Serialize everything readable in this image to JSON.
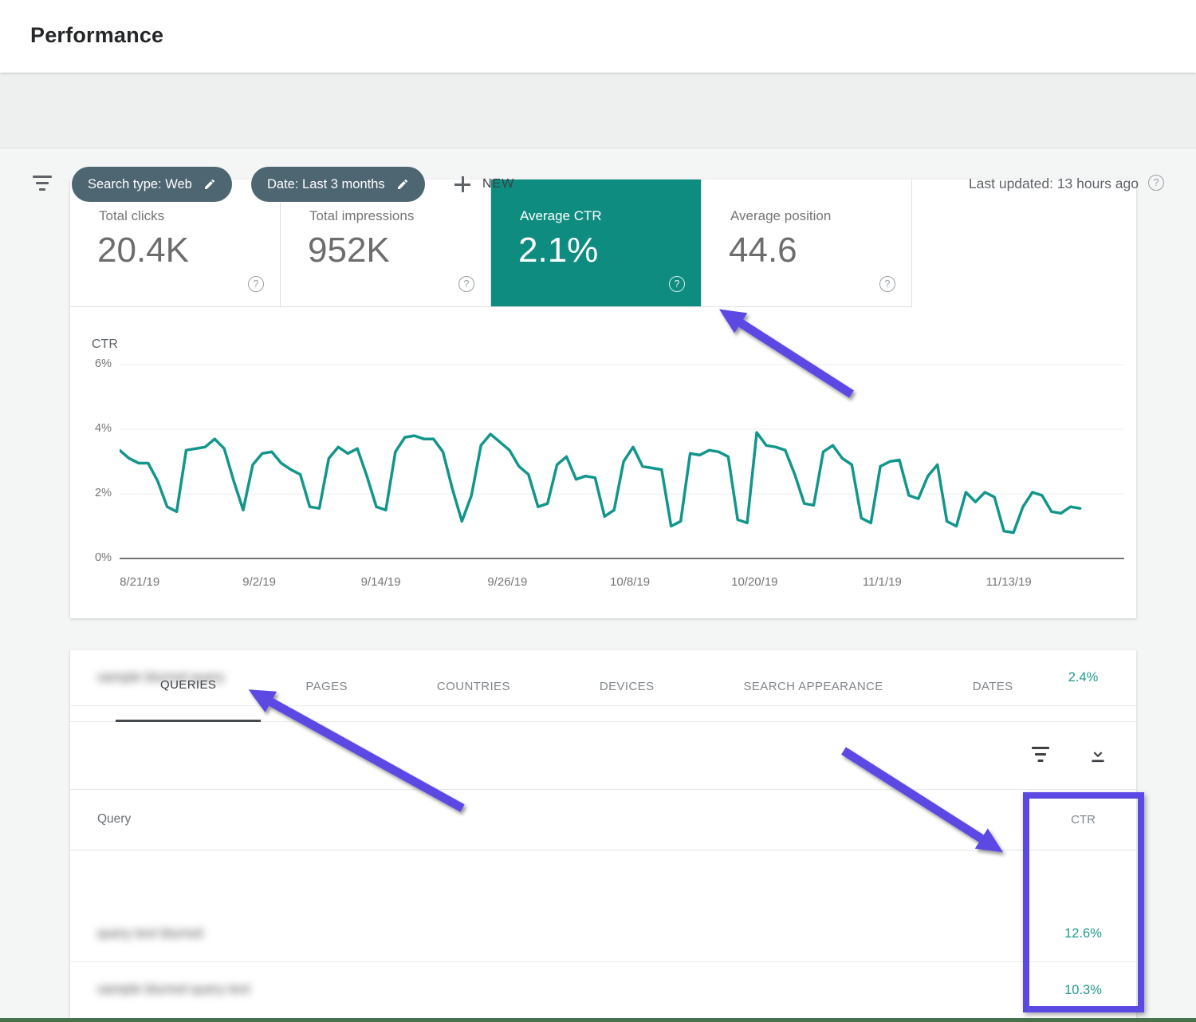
{
  "page": {
    "title": "Performance"
  },
  "toolbar": {
    "search_type_chip": "Search type: Web",
    "date_chip": "Date: Last 3 months",
    "new_button": "NEW",
    "last_updated": "Last updated: 13 hours ago"
  },
  "metric_cards": [
    {
      "label": "Total clicks",
      "value": "20.4K",
      "selected": false
    },
    {
      "label": "Total impressions",
      "value": "952K",
      "selected": false
    },
    {
      "label": "Average CTR",
      "value": "2.1%",
      "selected": true
    },
    {
      "label": "Average position",
      "value": "44.6",
      "selected": false
    }
  ],
  "chart_data": {
    "type": "line",
    "title": "CTR",
    "ylabel": "CTR",
    "xlabel": "",
    "ylim": [
      0,
      6
    ],
    "grid": true,
    "legend_position": "none",
    "x_range": [
      "8/21/19",
      "11/20/19"
    ],
    "y_ticks": [
      {
        "label": "6%",
        "value": 6
      },
      {
        "label": "4%",
        "value": 4
      },
      {
        "label": "2%",
        "value": 2
      },
      {
        "label": "0%",
        "value": 0
      }
    ],
    "x_ticks": [
      {
        "label": "8/21/19",
        "pos_pct": 2.0
      },
      {
        "label": "9/2/19",
        "pos_pct": 13.9
      },
      {
        "label": "9/14/19",
        "pos_pct": 26.0
      },
      {
        "label": "9/26/19",
        "pos_pct": 38.6
      },
      {
        "label": "10/8/19",
        "pos_pct": 50.8
      },
      {
        "label": "10/20/19",
        "pos_pct": 63.2
      },
      {
        "label": "11/1/19",
        "pos_pct": 75.9
      },
      {
        "label": "11/13/19",
        "pos_pct": 88.5
      }
    ],
    "line_end_pct": 95.6,
    "series": [
      {
        "name": "CTR",
        "unit": "%",
        "color": "#12968b",
        "values": [
          3.35,
          3.1,
          2.95,
          2.95,
          2.4,
          1.6,
          1.45,
          3.35,
          3.4,
          3.45,
          3.7,
          3.4,
          2.4,
          1.5,
          2.9,
          3.25,
          3.3,
          2.95,
          2.75,
          2.6,
          1.6,
          1.55,
          3.1,
          3.45,
          3.25,
          3.4,
          2.55,
          1.6,
          1.5,
          3.3,
          3.75,
          3.8,
          3.7,
          3.7,
          3.3,
          2.15,
          1.15,
          1.95,
          3.5,
          3.85,
          3.6,
          3.35,
          2.85,
          2.6,
          1.6,
          1.7,
          2.9,
          3.15,
          2.45,
          2.55,
          2.5,
          1.3,
          1.5,
          3.0,
          3.45,
          2.85,
          2.8,
          2.75,
          1.0,
          1.15,
          3.25,
          3.2,
          3.35,
          3.3,
          3.15,
          1.2,
          1.1,
          3.9,
          3.5,
          3.45,
          3.35,
          2.6,
          1.7,
          1.65,
          3.3,
          3.5,
          3.1,
          2.9,
          1.25,
          1.1,
          2.85,
          3.0,
          3.05,
          1.95,
          1.85,
          2.55,
          2.9,
          1.15,
          1.0,
          2.05,
          1.75,
          2.05,
          1.9,
          0.85,
          0.8,
          1.6,
          2.05,
          1.95,
          1.45,
          1.4,
          1.6,
          1.55
        ]
      }
    ]
  },
  "table": {
    "tabs": [
      {
        "label": "QUERIES",
        "active": true
      },
      {
        "label": "PAGES",
        "active": false
      },
      {
        "label": "COUNTRIES",
        "active": false
      },
      {
        "label": "DEVICES",
        "active": false
      },
      {
        "label": "SEARCH APPEARANCE",
        "active": false
      },
      {
        "label": "DATES",
        "active": false
      }
    ],
    "query_column_header": "Query",
    "ctr_column_header": "CTR",
    "rows": [
      {
        "query_blurred": "sample blurred query",
        "ctr": "2.4%"
      },
      {
        "query_blurred": "query text blurred",
        "ctr": "12.6%"
      },
      {
        "query_blurred": "sample blurred query text",
        "ctr": "10.3%"
      }
    ]
  },
  "colors": {
    "selected_card_teal": "#0e8c80",
    "chart_line_teal": "#12968b",
    "table_value_teal": "#1f998c",
    "annotation_purple": "#5b49e4",
    "chip_background": "#4e6572",
    "bottom_bar_green": "#48714f"
  }
}
